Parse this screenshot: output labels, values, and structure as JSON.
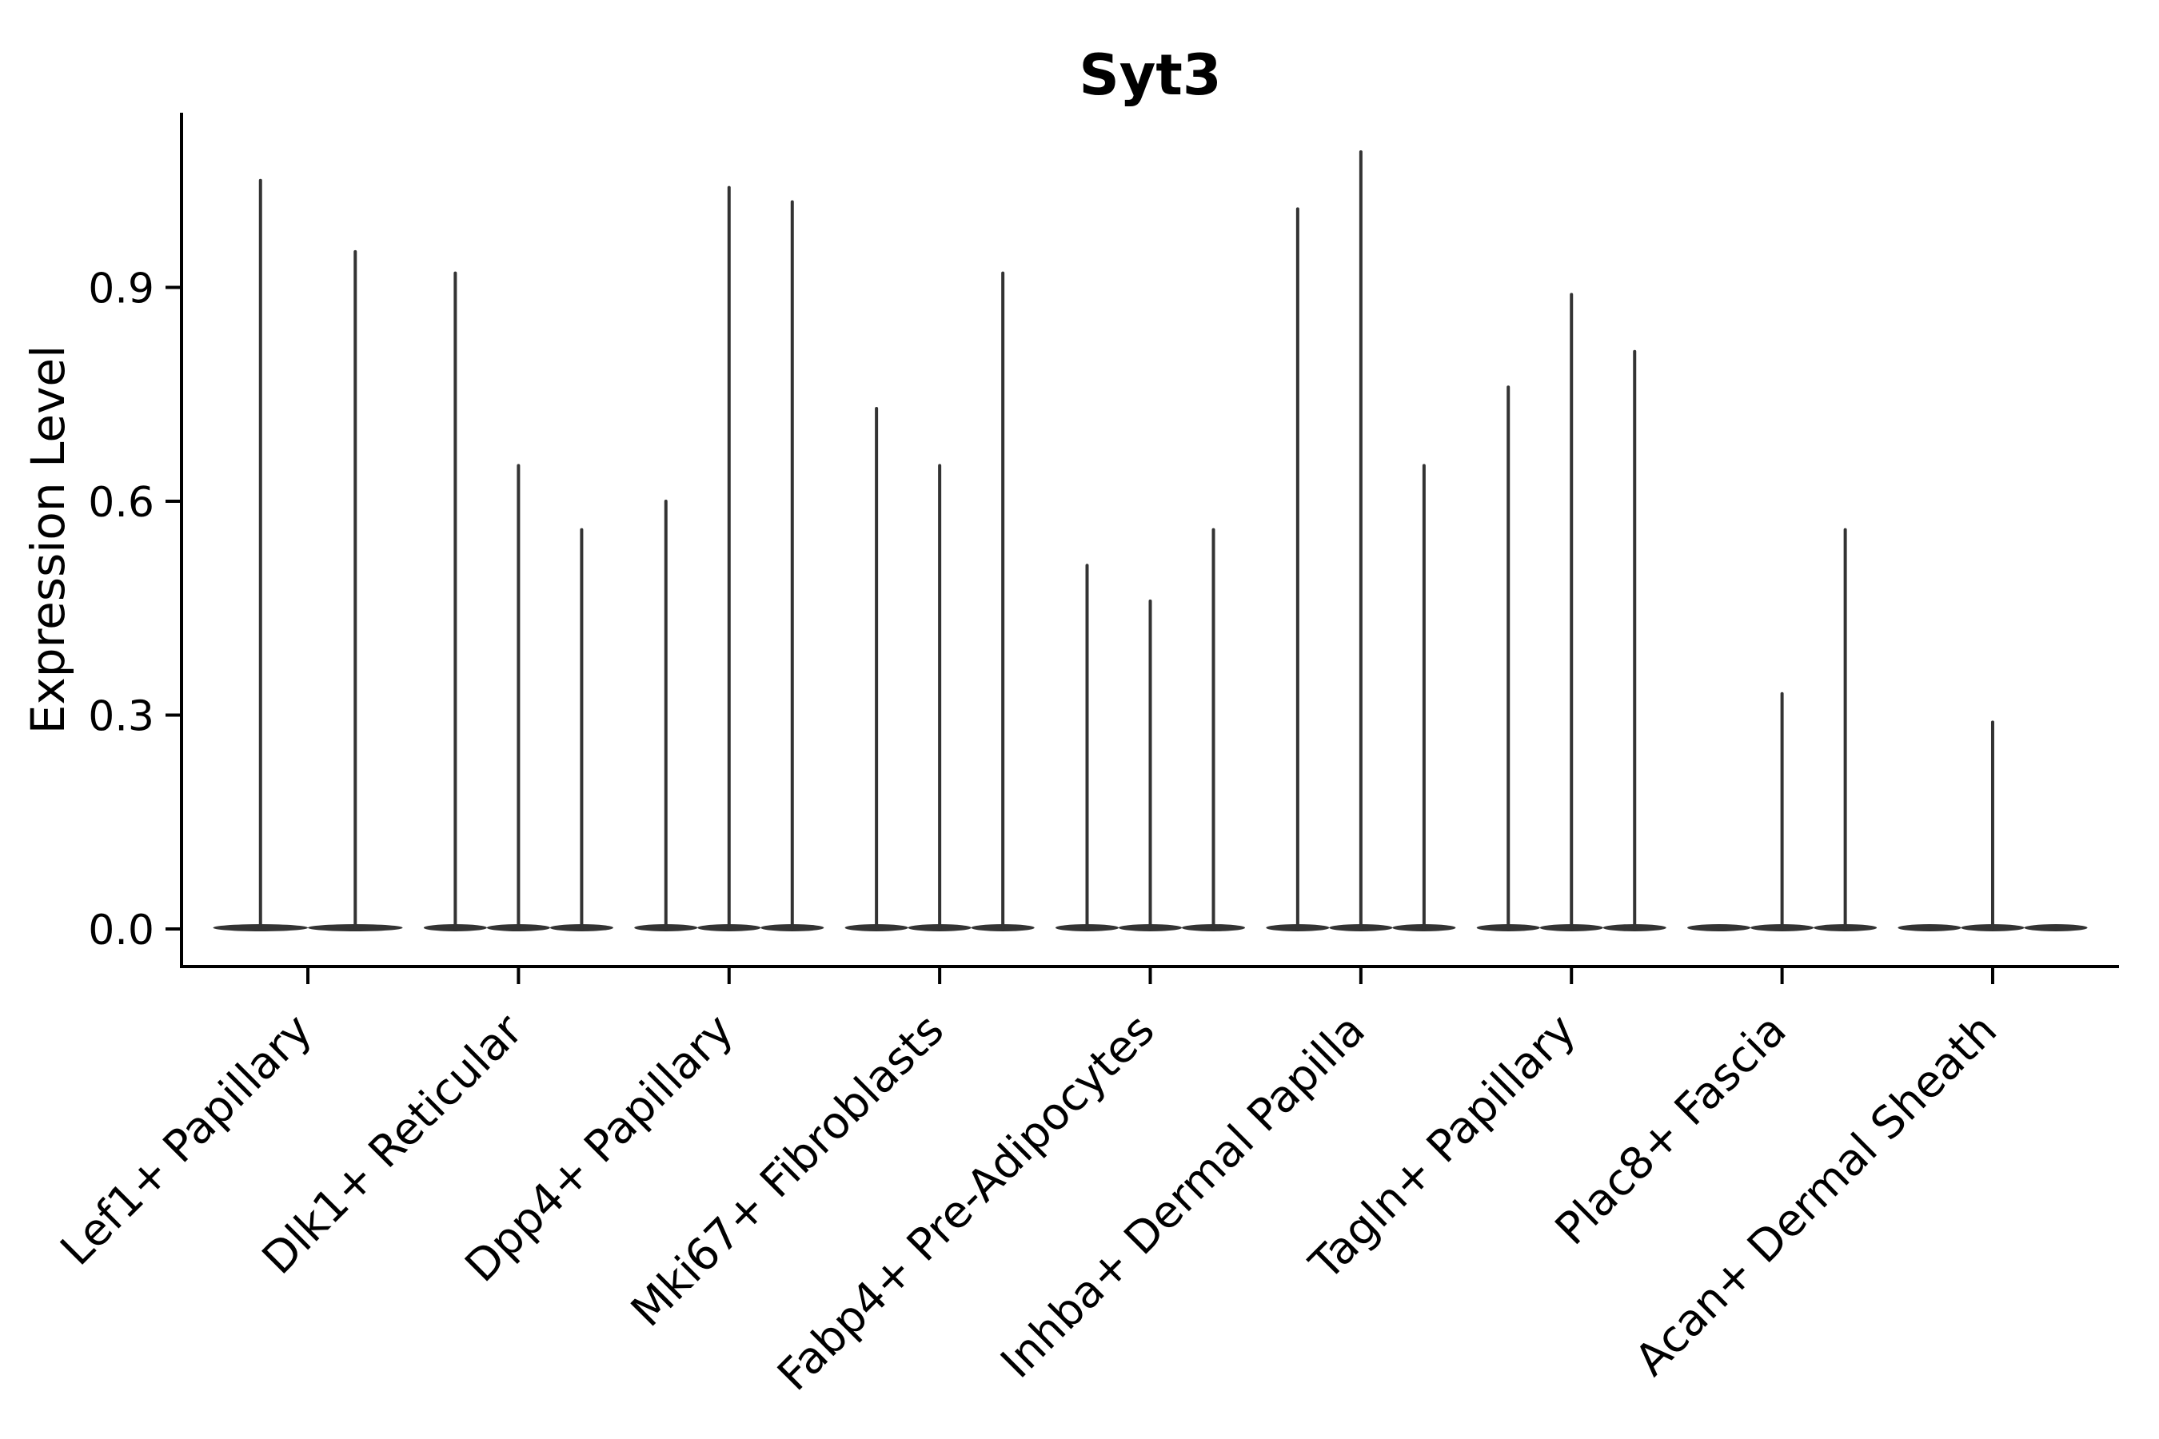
{
  "figure": {
    "title": "Syt3",
    "y_axis_label": "Expression Level"
  },
  "chart_data": {
    "type": "violin",
    "title": "Syt3",
    "xlabel": "",
    "ylabel": "Expression Level",
    "ylim": [
      -0.054,
      1.143
    ],
    "yticks": [
      0.0,
      0.3,
      0.6,
      0.9
    ],
    "ytick_labels": [
      "0.0",
      "0.3",
      "0.6",
      "0.9"
    ],
    "grid": false,
    "legend": null,
    "x_tick_rotation_deg": 45,
    "description": "Needle-style violin plot (single-cell expression); each category holds 2-3 thin violins with a flat density lens at 0 and a vertical spike up to the max expression value; violins with max 0 render as a flat lens only",
    "categories": [
      "Lef1+ Papillary",
      "Dlk1+ Reticular",
      "Dpp4+ Papillary",
      "Mki67+ Fibroblasts",
      "Fabp4+ Pre-Adipocytes",
      "Inhba+ Dermal Papilla",
      "Tagln+ Papillary",
      "Plac8+ Fascia",
      "Acan+ Dermal Sheath"
    ],
    "series": [
      {
        "category": "Lef1+ Papillary",
        "violin_max_values": [
          1.05,
          0.95
        ]
      },
      {
        "category": "Dlk1+ Reticular",
        "violin_max_values": [
          0.92,
          0.65,
          0.56
        ]
      },
      {
        "category": "Dpp4+ Papillary",
        "violin_max_values": [
          0.6,
          1.04,
          1.02
        ]
      },
      {
        "category": "Mki67+ Fibroblasts",
        "violin_max_values": [
          0.73,
          0.65,
          0.92
        ]
      },
      {
        "category": "Fabp4+ Pre-Adipocytes",
        "violin_max_values": [
          0.51,
          0.46,
          0.56
        ]
      },
      {
        "category": "Inhba+ Dermal Papilla",
        "violin_max_values": [
          1.01,
          1.09,
          0.65
        ]
      },
      {
        "category": "Tagln+ Papillary",
        "violin_max_values": [
          0.76,
          0.89,
          0.81
        ]
      },
      {
        "category": "Plac8+ Fascia",
        "violin_max_values": [
          0.0,
          0.33,
          0.56
        ]
      },
      {
        "category": "Acan+ Dermal Sheath",
        "violin_max_values": [
          0.0,
          0.29,
          0.0
        ]
      }
    ],
    "style": {
      "violin_color": "#333333",
      "axis_color": "#000000",
      "background_color": "#ffffff"
    }
  }
}
